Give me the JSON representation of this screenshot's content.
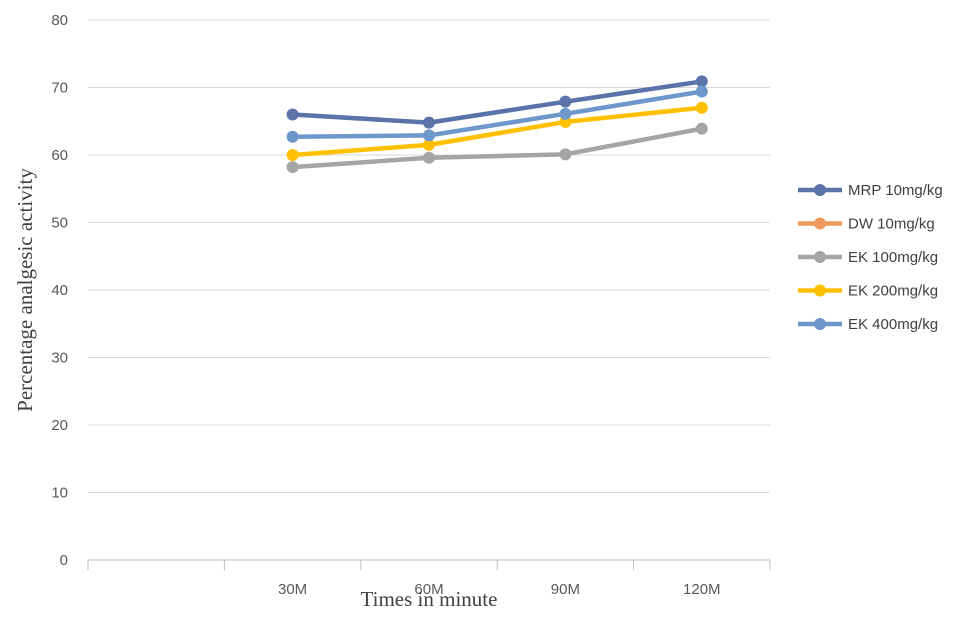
{
  "chart_data": {
    "type": "line",
    "title": "",
    "xlabel": "Times in minute",
    "ylabel": "Percentage analgesic activity",
    "categories": [
      "",
      "30M",
      "60M",
      "90M",
      "120M"
    ],
    "ylim": [
      0,
      80
    ],
    "yticks": [
      0,
      10,
      20,
      30,
      40,
      50,
      60,
      70,
      80
    ],
    "grid": true,
    "legend_position": "right",
    "series": [
      {
        "name": "MRP 10mg/kg",
        "color": "#5b73a8",
        "values": [
          null,
          66,
          64.8,
          67.9,
          70.9
        ]
      },
      {
        "name": "DW 10mg/kg",
        "color": "#ed9a5c",
        "values": [
          null,
          null,
          null,
          null,
          null
        ]
      },
      {
        "name": "EK 100mg/kg",
        "color": "#a5a5a5",
        "values": [
          null,
          58.2,
          59.6,
          60.1,
          63.9
        ]
      },
      {
        "name": "EK 200mg/kg",
        "color": "#ffc000",
        "values": [
          null,
          60,
          61.5,
          64.9,
          67
        ]
      },
      {
        "name": "EK 400mg/kg",
        "color": "#6e97cb",
        "values": [
          null,
          62.7,
          62.9,
          66.1,
          69.4
        ]
      }
    ]
  }
}
